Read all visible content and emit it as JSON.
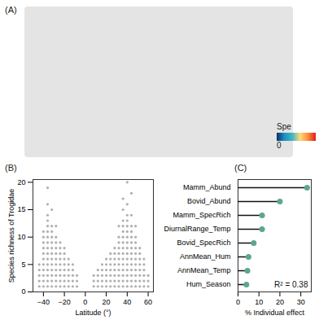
{
  "chart_data": [
    {
      "type": "map",
      "title": "(A)",
      "legend_title": "Spe",
      "legend_ticks": [
        0
      ],
      "colors": [
        "#08306b",
        "#1d91c0",
        "#41b6c4",
        "#fed976",
        "#fd8d3c",
        "#e31a1c"
      ]
    },
    {
      "type": "scatter",
      "title": "(B)",
      "x_label": "Latitude (°)",
      "y_label": "Species richness of Trogidae",
      "color": "#b0b0b0",
      "xlim": [
        -50,
        65
      ],
      "xticks": [
        -40,
        -20,
        0,
        20,
        40,
        60
      ],
      "ylim": [
        0,
        20.5
      ],
      "yticks": [
        0,
        5,
        10,
        15,
        20
      ],
      "x": [
        -44,
        -44,
        -44,
        -44,
        -44,
        -40,
        -40,
        -40,
        -40,
        -40,
        -40,
        -40,
        -40,
        -40,
        -40,
        -40,
        -36,
        -36,
        -36,
        -36,
        -36,
        -36,
        -36,
        -36,
        -36,
        -36,
        -36,
        -36,
        -36,
        -36,
        -36,
        -36,
        -32,
        -32,
        -32,
        -32,
        -32,
        -32,
        -32,
        -32,
        -32,
        -32,
        -32,
        -32,
        -32,
        -28,
        -28,
        -28,
        -28,
        -28,
        -28,
        -28,
        -28,
        -28,
        -28,
        -28,
        -24,
        -24,
        -24,
        -24,
        -24,
        -24,
        -24,
        -24,
        -24,
        -20,
        -20,
        -20,
        -20,
        -20,
        -20,
        -20,
        -20,
        -16,
        -16,
        -16,
        -16,
        -16,
        -16,
        -12,
        -12,
        -12,
        -12,
        -12,
        -8,
        -8,
        -8,
        8,
        8,
        8,
        12,
        12,
        12,
        12,
        16,
        16,
        16,
        16,
        16,
        20,
        20,
        20,
        20,
        20,
        20,
        24,
        24,
        24,
        24,
        24,
        24,
        24,
        28,
        28,
        28,
        28,
        28,
        28,
        28,
        28,
        32,
        32,
        32,
        32,
        32,
        32,
        32,
        32,
        32,
        32,
        32,
        36,
        36,
        36,
        36,
        36,
        36,
        36,
        36,
        36,
        36,
        36,
        36,
        36,
        36,
        36,
        40,
        40,
        40,
        40,
        40,
        40,
        40,
        40,
        40,
        40,
        40,
        40,
        40,
        40,
        40,
        40,
        44,
        44,
        44,
        44,
        44,
        44,
        44,
        44,
        44,
        44,
        44,
        44,
        44,
        44,
        48,
        48,
        48,
        48,
        48,
        48,
        48,
        48,
        48,
        48,
        48,
        52,
        52,
        52,
        52,
        52,
        52,
        52,
        52,
        56,
        56,
        56,
        56,
        56,
        56,
        60,
        60,
        60
      ],
      "values": [
        1,
        2,
        3,
        4,
        5,
        1,
        2,
        3,
        4,
        5,
        6,
        7,
        8,
        9,
        10,
        11,
        1,
        2,
        3,
        4,
        5,
        6,
        7,
        8,
        9,
        10,
        11,
        12,
        13,
        14,
        16,
        19,
        1,
        2,
        3,
        4,
        5,
        6,
        7,
        8,
        9,
        10,
        11,
        12,
        15,
        1,
        2,
        3,
        4,
        5,
        6,
        7,
        8,
        9,
        10,
        12,
        1,
        2,
        3,
        4,
        5,
        6,
        7,
        8,
        9,
        1,
        2,
        3,
        4,
        5,
        6,
        7,
        8,
        1,
        2,
        3,
        4,
        5,
        6,
        1,
        2,
        3,
        4,
        5,
        1,
        2,
        3,
        1,
        2,
        3,
        1,
        2,
        3,
        4,
        1,
        2,
        3,
        4,
        5,
        1,
        2,
        3,
        4,
        5,
        6,
        1,
        2,
        3,
        4,
        5,
        6,
        7,
        1,
        2,
        3,
        4,
        5,
        6,
        7,
        8,
        1,
        2,
        3,
        4,
        5,
        6,
        7,
        8,
        9,
        10,
        12,
        1,
        2,
        3,
        4,
        5,
        6,
        7,
        8,
        9,
        10,
        11,
        12,
        13,
        15,
        17,
        1,
        2,
        3,
        4,
        5,
        6,
        7,
        8,
        9,
        10,
        11,
        12,
        13,
        14,
        16,
        20,
        1,
        2,
        3,
        4,
        5,
        6,
        7,
        8,
        9,
        10,
        11,
        12,
        14,
        18,
        1,
        2,
        3,
        4,
        5,
        6,
        7,
        8,
        9,
        10,
        12,
        1,
        2,
        3,
        4,
        5,
        6,
        7,
        8,
        1,
        2,
        3,
        4,
        5,
        6,
        1,
        2,
        3
      ]
    },
    {
      "type": "lollipop",
      "title": "(C)",
      "orientation": "horizontal",
      "x_label": "% Individual effect",
      "color": "#5aa88a",
      "annotation": "R² = 0.38",
      "categories": [
        "Mamm_Abund",
        "Bovid_Abund",
        "Mamm_SpecRich",
        "DiurnalRange_Temp",
        "Bovid_SpecRich",
        "AnnMean_Hum",
        "AnnMean_Temp",
        "Hum_Season"
      ],
      "values": [
        33,
        20,
        11.5,
        11.5,
        7.5,
        5,
        4.5,
        4
      ],
      "xlim": [
        0,
        35
      ],
      "xticks": [
        0,
        10,
        20,
        30
      ]
    }
  ]
}
